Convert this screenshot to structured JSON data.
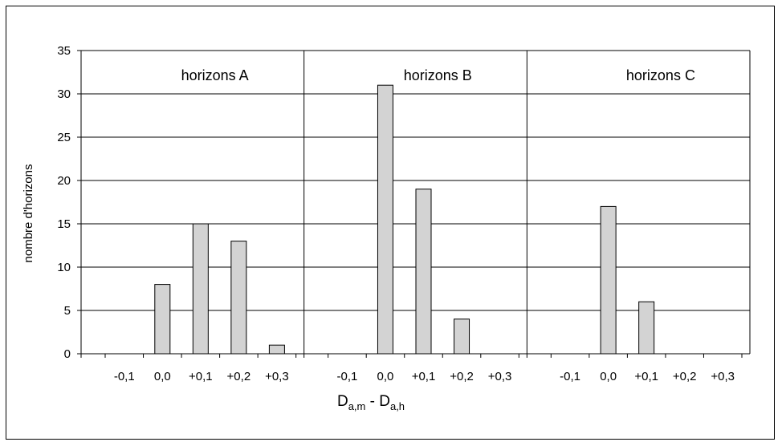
{
  "chart_data": {
    "type": "bar",
    "ylabel": "nombre d'horizons",
    "xlabel": {
      "main": "D",
      "sub1": "a,m",
      "mid": " - D",
      "sub2": "a,h"
    },
    "ylim": [
      0,
      35
    ],
    "yticks": [
      0,
      5,
      10,
      15,
      20,
      25,
      30,
      35
    ],
    "grid": true,
    "categories": [
      "-0,1",
      "0,0",
      "+0,1",
      "+0,2",
      "+0,3"
    ],
    "panels": [
      {
        "name": "horizons A",
        "values": [
          0,
          8,
          15,
          13,
          1
        ]
      },
      {
        "name": "horizons B",
        "values": [
          0,
          31,
          19,
          4,
          0
        ]
      },
      {
        "name": "horizons C",
        "values": [
          0,
          17,
          6,
          0,
          0
        ]
      }
    ],
    "bar_color": "#d3d3d3"
  }
}
